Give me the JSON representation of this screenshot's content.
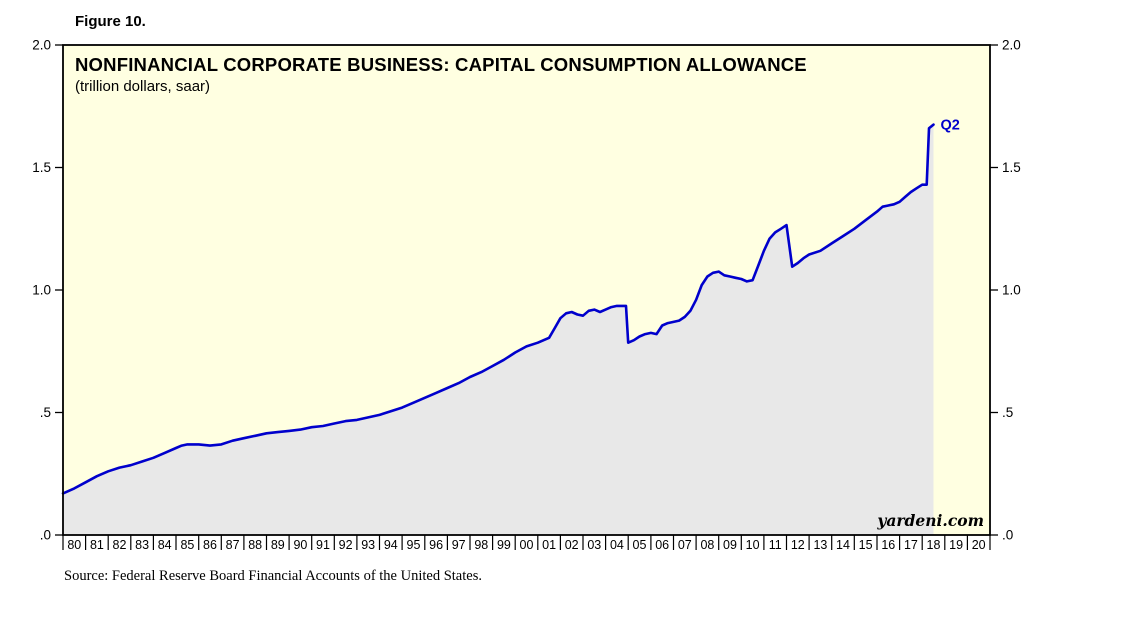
{
  "figure_label": "Figure 10.",
  "source_note": "Source: Federal Reserve Board Financial Accounts of the United States.",
  "chart_data": {
    "type": "area",
    "title": "NONFINANCIAL CORPORATE BUSINESS: CAPITAL CONSUMPTION ALLOWANCE",
    "subtitle": "(trillion dollars, saar)",
    "end_label": "Q2",
    "watermark": "yardeni.com",
    "x_range": [
      1980,
      2021
    ],
    "y_range": [
      0,
      2.0
    ],
    "grid": false,
    "legend": "none",
    "y_ticks": [
      {
        "value": 0.0,
        "label": ".0"
      },
      {
        "value": 0.5,
        "label": ".5"
      },
      {
        "value": 1.0,
        "label": "1.0"
      },
      {
        "value": 1.5,
        "label": "1.5"
      },
      {
        "value": 2.0,
        "label": "2.0"
      }
    ],
    "x_tick_labels": [
      "80",
      "81",
      "82",
      "83",
      "84",
      "85",
      "86",
      "87",
      "88",
      "89",
      "90",
      "91",
      "92",
      "93",
      "94",
      "95",
      "96",
      "97",
      "98",
      "99",
      "00",
      "01",
      "02",
      "03",
      "04",
      "05",
      "06",
      "07",
      "08",
      "09",
      "10",
      "11",
      "12",
      "13",
      "14",
      "15",
      "16",
      "17",
      "18",
      "19",
      "20"
    ],
    "colors": {
      "line": "#0000CC",
      "area_fill": "#E8E8E8",
      "plot_bg": "#FFFFE1",
      "frame": "#000000"
    },
    "series": [
      {
        "name": "Capital Consumption Allowance (trillion dollars, saar)",
        "points": [
          [
            1980.0,
            0.17
          ],
          [
            1980.5,
            0.19
          ],
          [
            1981.0,
            0.215
          ],
          [
            1981.5,
            0.24
          ],
          [
            1982.0,
            0.26
          ],
          [
            1982.5,
            0.275
          ],
          [
            1983.0,
            0.285
          ],
          [
            1983.5,
            0.3
          ],
          [
            1984.0,
            0.315
          ],
          [
            1984.5,
            0.335
          ],
          [
            1985.0,
            0.355
          ],
          [
            1985.25,
            0.365
          ],
          [
            1985.5,
            0.37
          ],
          [
            1986.0,
            0.37
          ],
          [
            1986.5,
            0.365
          ],
          [
            1987.0,
            0.37
          ],
          [
            1987.5,
            0.385
          ],
          [
            1988.0,
            0.395
          ],
          [
            1988.5,
            0.405
          ],
          [
            1989.0,
            0.415
          ],
          [
            1989.5,
            0.42
          ],
          [
            1990.0,
            0.425
          ],
          [
            1990.5,
            0.43
          ],
          [
            1991.0,
            0.44
          ],
          [
            1991.5,
            0.445
          ],
          [
            1992.0,
            0.455
          ],
          [
            1992.5,
            0.465
          ],
          [
            1993.0,
            0.47
          ],
          [
            1993.5,
            0.48
          ],
          [
            1994.0,
            0.49
          ],
          [
            1994.5,
            0.505
          ],
          [
            1995.0,
            0.52
          ],
          [
            1995.5,
            0.54
          ],
          [
            1996.0,
            0.56
          ],
          [
            1996.5,
            0.58
          ],
          [
            1997.0,
            0.6
          ],
          [
            1997.5,
            0.62
          ],
          [
            1998.0,
            0.645
          ],
          [
            1998.5,
            0.665
          ],
          [
            1999.0,
            0.69
          ],
          [
            1999.5,
            0.715
          ],
          [
            2000.0,
            0.745
          ],
          [
            2000.5,
            0.77
          ],
          [
            2001.0,
            0.785
          ],
          [
            2001.5,
            0.805
          ],
          [
            2001.75,
            0.845
          ],
          [
            2002.0,
            0.885
          ],
          [
            2002.25,
            0.905
          ],
          [
            2002.5,
            0.91
          ],
          [
            2002.75,
            0.9
          ],
          [
            2003.0,
            0.895
          ],
          [
            2003.25,
            0.915
          ],
          [
            2003.5,
            0.92
          ],
          [
            2003.75,
            0.91
          ],
          [
            2004.0,
            0.92
          ],
          [
            2004.25,
            0.93
          ],
          [
            2004.5,
            0.935
          ],
          [
            2004.9,
            0.935
          ],
          [
            2005.0,
            0.785
          ],
          [
            2005.25,
            0.795
          ],
          [
            2005.5,
            0.81
          ],
          [
            2005.75,
            0.82
          ],
          [
            2006.0,
            0.825
          ],
          [
            2006.25,
            0.82
          ],
          [
            2006.5,
            0.855
          ],
          [
            2006.75,
            0.865
          ],
          [
            2007.0,
            0.87
          ],
          [
            2007.25,
            0.875
          ],
          [
            2007.5,
            0.89
          ],
          [
            2007.75,
            0.915
          ],
          [
            2008.0,
            0.96
          ],
          [
            2008.25,
            1.02
          ],
          [
            2008.5,
            1.055
          ],
          [
            2008.75,
            1.07
          ],
          [
            2009.0,
            1.075
          ],
          [
            2009.25,
            1.06
          ],
          [
            2009.5,
            1.055
          ],
          [
            2009.75,
            1.05
          ],
          [
            2010.0,
            1.045
          ],
          [
            2010.25,
            1.035
          ],
          [
            2010.5,
            1.04
          ],
          [
            2010.75,
            1.1
          ],
          [
            2011.0,
            1.16
          ],
          [
            2011.25,
            1.21
          ],
          [
            2011.5,
            1.235
          ],
          [
            2011.75,
            1.25
          ],
          [
            2012.0,
            1.265
          ],
          [
            2012.25,
            1.095
          ],
          [
            2012.5,
            1.11
          ],
          [
            2012.75,
            1.13
          ],
          [
            2013.0,
            1.145
          ],
          [
            2013.5,
            1.16
          ],
          [
            2014.0,
            1.19
          ],
          [
            2014.5,
            1.22
          ],
          [
            2015.0,
            1.25
          ],
          [
            2015.5,
            1.285
          ],
          [
            2016.0,
            1.32
          ],
          [
            2016.25,
            1.34
          ],
          [
            2016.5,
            1.345
          ],
          [
            2016.75,
            1.35
          ],
          [
            2017.0,
            1.36
          ],
          [
            2017.25,
            1.38
          ],
          [
            2017.5,
            1.4
          ],
          [
            2017.75,
            1.415
          ],
          [
            2018.0,
            1.43
          ],
          [
            2018.2,
            1.43
          ],
          [
            2018.3,
            1.66
          ],
          [
            2018.5,
            1.675
          ]
        ]
      }
    ]
  }
}
